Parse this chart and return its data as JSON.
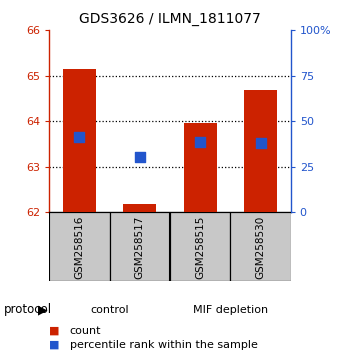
{
  "title": "GDS3626 / ILMN_1811077",
  "samples": [
    "GSM258516",
    "GSM258517",
    "GSM258515",
    "GSM258530"
  ],
  "bar_bottoms": [
    62.0,
    62.0,
    62.0,
    62.0
  ],
  "bar_tops": [
    65.15,
    62.18,
    63.97,
    64.68
  ],
  "blue_y": [
    63.65,
    63.22,
    63.55,
    63.52
  ],
  "ylim_left": [
    62,
    66
  ],
  "ylim_right": [
    0,
    100
  ],
  "yticks_left": [
    62,
    63,
    64,
    65,
    66
  ],
  "yticks_right": [
    0,
    25,
    50,
    75,
    100
  ],
  "ytick_labels_right": [
    "0",
    "25",
    "50",
    "75",
    "100%"
  ],
  "bar_color": "#cc2200",
  "blue_color": "#2255cc",
  "bar_width": 0.55,
  "blue_size": 55,
  "ctrl_color": "#ccffcc",
  "mif_color": "#44ee44",
  "sample_area_color": "#c8c8c8",
  "left_axis_color": "#cc2200",
  "right_axis_color": "#2255cc"
}
